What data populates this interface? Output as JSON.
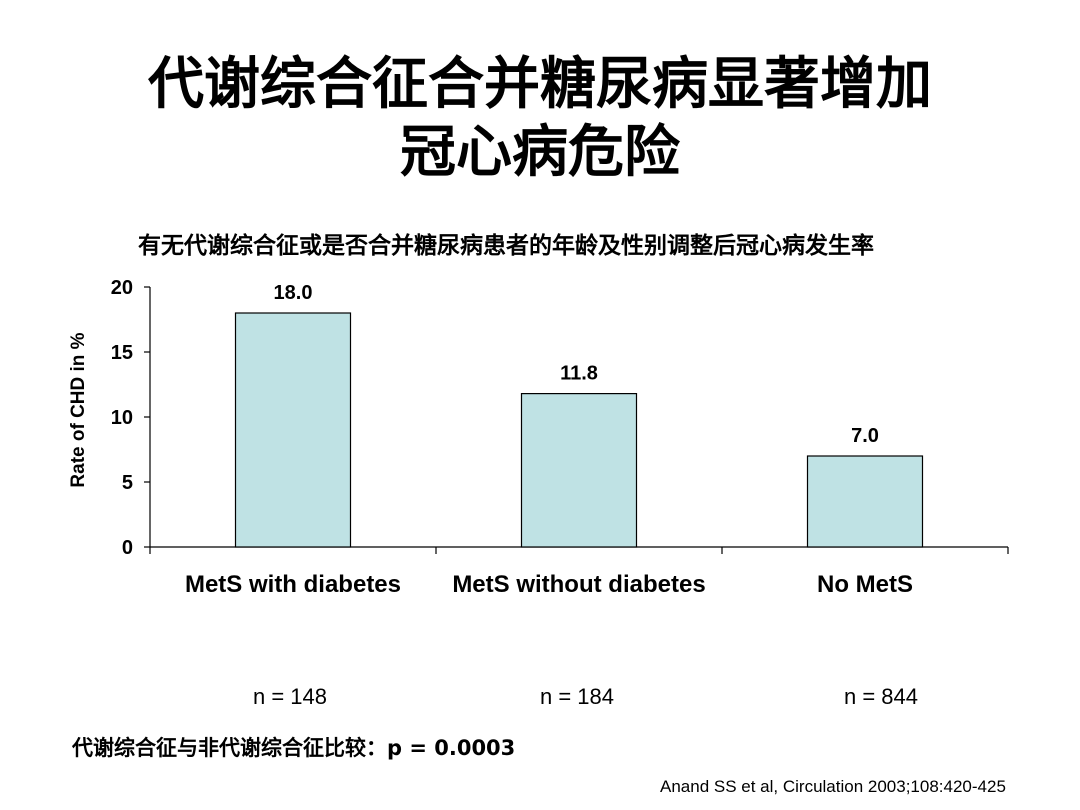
{
  "title_lines": [
    "代谢综合征合并糖尿病显著增加",
    "冠心病危险"
  ],
  "chart_data": {
    "type": "bar",
    "title": "有无代谢综合征或是否合并糖尿病患者的年龄及性别调整后冠心病发生率",
    "ylabel": "Rate of CHD in %",
    "ylim": [
      0,
      20
    ],
    "yticks": [
      "0",
      "5",
      "10",
      "15",
      "20"
    ],
    "categories": [
      "MetS with diabetes",
      "MetS without diabetes",
      "No MetS"
    ],
    "values": [
      18.0,
      11.8,
      7.0
    ],
    "data_labels": [
      "18.0",
      "11.8",
      "7.0"
    ],
    "bar_color": "#bfe2e4",
    "grid": false,
    "legend": "none"
  },
  "sample_sizes": [
    "n = 148",
    "n = 184",
    "n = 844"
  ],
  "p_note": "代谢综合征与非代谢综合征比较：p = 0.0003",
  "citation": "Anand SS et al, Circulation 2003;108:420-425"
}
